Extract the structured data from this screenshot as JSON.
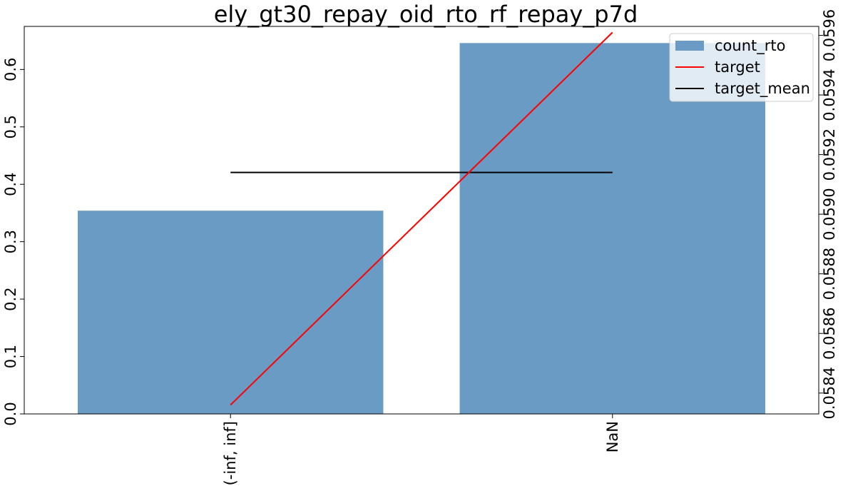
{
  "chart_data": {
    "type": "bar",
    "title": "ely_gt30_repay_oid_rto_rf_repay_p7d",
    "categories": [
      "(-inf, inf]",
      "NaN"
    ],
    "xlabel": "",
    "ylabel": "",
    "ylim": [
      0,
      0.675
    ],
    "y_ticks": [
      "0.0",
      "0.1",
      "0.2",
      "0.3",
      "0.4",
      "0.5",
      "0.6"
    ],
    "y2lim": [
      0.05833,
      0.05963
    ],
    "y2_ticks": [
      "0.0584",
      "0.0586",
      "0.0588",
      "0.0590",
      "0.0592",
      "0.0594",
      "0.0596"
    ],
    "grid": false,
    "legend_position": "top-right",
    "series": [
      {
        "name": "count_rto",
        "kind": "bar",
        "axis": "left",
        "color": "#6a9bc4",
        "values": [
          0.354,
          0.646
        ]
      },
      {
        "name": "target",
        "kind": "line",
        "axis": "right",
        "color": "#ff0000",
        "values": [
          0.05836,
          0.05961
        ]
      },
      {
        "name": "target_mean",
        "kind": "line",
        "axis": "right",
        "color": "#000000",
        "values": [
          0.05914,
          0.05914
        ]
      }
    ]
  }
}
